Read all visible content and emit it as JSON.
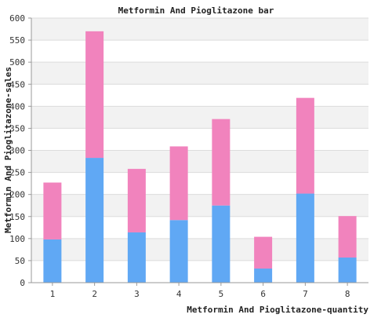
{
  "chart_data": {
    "type": "bar",
    "stacked": true,
    "title": "Metformin And Pioglitazone bar",
    "xlabel": "Metformin And Pioglitazone-quantity",
    "ylabel": "Metformin And Pioglitazone-sales",
    "categories": [
      "1",
      "2",
      "3",
      "4",
      "5",
      "6",
      "7",
      "8"
    ],
    "series": [
      {
        "color": "#60a8f4",
        "values": [
          98,
          283,
          114,
          142,
          175,
          32,
          202,
          57
        ]
      },
      {
        "color": "#f183bd",
        "values": [
          129,
          287,
          144,
          167,
          196,
          72,
          217,
          94
        ]
      }
    ],
    "ylim": [
      0,
      600
    ],
    "yticks": [
      0,
      50,
      100,
      150,
      200,
      250,
      300,
      350,
      400,
      450,
      500,
      550,
      600
    ],
    "grid": "horizontal",
    "band_colors": [
      "#f2f2f2",
      "#ffffff"
    ]
  }
}
